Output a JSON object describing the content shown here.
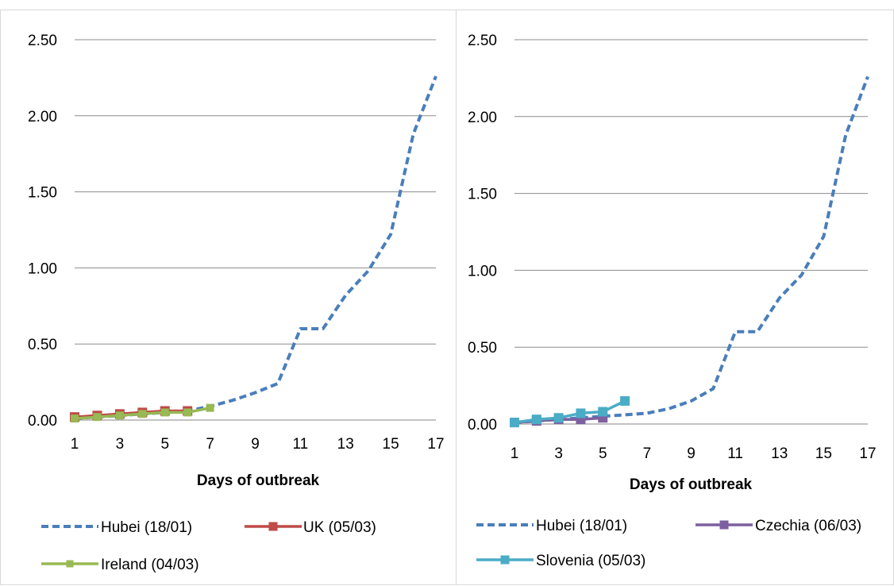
{
  "chart_data": [
    {
      "type": "line",
      "xlabel": "Days of outbreak",
      "ylabel": "",
      "ylim": [
        0,
        2.5
      ],
      "xlim": [
        1,
        17
      ],
      "x_ticks": [
        "1",
        "3",
        "5",
        "7",
        "9",
        "11",
        "13",
        "15",
        "17"
      ],
      "y_ticks": [
        "0.00",
        "0.50",
        "1.00",
        "1.50",
        "2.00",
        "2.50"
      ],
      "grid": "horizontal",
      "legend_position": "bottom",
      "series": [
        {
          "name": "Hubei (18/01)",
          "color": "#4a7ebb",
          "style": "dashed",
          "marker": "none",
          "x": [
            1,
            2,
            3,
            4,
            5,
            6,
            7,
            8,
            9,
            10,
            11,
            12,
            13,
            14,
            15,
            16,
            17
          ],
          "y": [
            0.01,
            0.02,
            0.03,
            0.04,
            0.05,
            0.06,
            0.09,
            0.13,
            0.18,
            0.24,
            0.6,
            0.6,
            0.82,
            0.98,
            1.22,
            1.88,
            2.26
          ]
        },
        {
          "name": "UK (05/03)",
          "color": "#be4b48",
          "style": "solid",
          "marker": "square",
          "x": [
            1,
            2,
            3,
            4,
            5,
            6
          ],
          "y": [
            0.02,
            0.03,
            0.04,
            0.05,
            0.06,
            0.06
          ]
        },
        {
          "name": "Ireland (04/03)",
          "color": "#98b954",
          "style": "solid",
          "marker": "small-square",
          "x": [
            1,
            2,
            3,
            4,
            5,
            6,
            7
          ],
          "y": [
            0.01,
            0.02,
            0.03,
            0.04,
            0.05,
            0.05,
            0.08
          ]
        }
      ]
    },
    {
      "type": "line",
      "xlabel": "Days of outbreak",
      "ylabel": "",
      "ylim": [
        0,
        2.5
      ],
      "xlim": [
        1,
        17
      ],
      "x_ticks": [
        "1",
        "3",
        "5",
        "7",
        "9",
        "11",
        "13",
        "15",
        "17"
      ],
      "y_ticks": [
        "0.00",
        "0.50",
        "1.00",
        "1.50",
        "2.00",
        "2.50"
      ],
      "grid": "horizontal",
      "legend_position": "bottom",
      "series": [
        {
          "name": "Hubei (18/01)",
          "color": "#4a7ebb",
          "style": "dashed",
          "marker": "none",
          "x": [
            1,
            2,
            3,
            4,
            5,
            6,
            7,
            8,
            9,
            10,
            11,
            12,
            13,
            14,
            15,
            16,
            17
          ],
          "y": [
            0.01,
            0.02,
            0.03,
            0.04,
            0.05,
            0.06,
            0.07,
            0.1,
            0.15,
            0.23,
            0.6,
            0.6,
            0.82,
            0.97,
            1.22,
            1.88,
            2.26
          ]
        },
        {
          "name": "Czechia (06/03)",
          "color": "#7d60a0",
          "style": "solid",
          "marker": "square",
          "x": [
            1,
            2,
            3,
            4,
            5
          ],
          "y": [
            0.01,
            0.02,
            0.03,
            0.03,
            0.04
          ]
        },
        {
          "name": "Slovenia (05/03)",
          "color": "#4bacc6",
          "style": "solid",
          "marker": "square",
          "x": [
            1,
            2,
            3,
            4,
            5,
            6
          ],
          "y": [
            0.01,
            0.03,
            0.04,
            0.07,
            0.08,
            0.15
          ]
        }
      ]
    }
  ]
}
